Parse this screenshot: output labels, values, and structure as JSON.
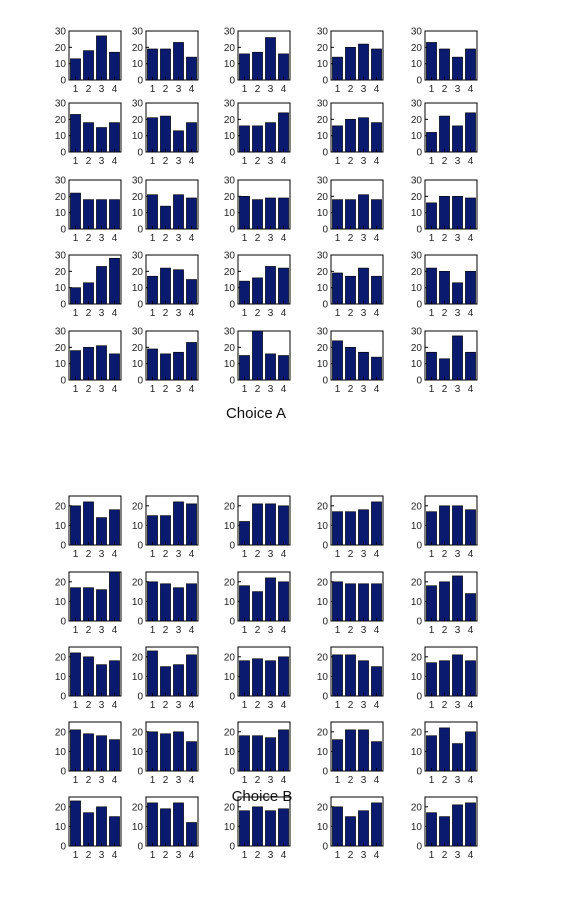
{
  "figure": {
    "bar_color": "#0a1a6e",
    "bar_edge_color": "#000000",
    "axes_color": "#000000",
    "background": "#ffffff"
  },
  "chart_data": [
    {
      "type": "bar",
      "title": "Choice A",
      "layout": "5x5 grid of small bar charts",
      "categories": [
        "1",
        "2",
        "3",
        "4"
      ],
      "ylim": [
        0,
        30
      ],
      "yticks": [
        0,
        10,
        20,
        30
      ],
      "grid": false,
      "subplots": [
        [
          13,
          18,
          27,
          17
        ],
        [
          19,
          19,
          23,
          14
        ],
        [
          16,
          17,
          26,
          16
        ],
        [
          14,
          20,
          22,
          19
        ],
        [
          23,
          19,
          14,
          19
        ],
        [
          23,
          18,
          15,
          18
        ],
        [
          21,
          22,
          13,
          18
        ],
        [
          16,
          16,
          18,
          24
        ],
        [
          16,
          20,
          21,
          18
        ],
        [
          12,
          22,
          16,
          24
        ],
        [
          22,
          18,
          18,
          18
        ],
        [
          21,
          14,
          21,
          19
        ],
        [
          20,
          18,
          19,
          19
        ],
        [
          18,
          18,
          21,
          18
        ],
        [
          16,
          20,
          20,
          19
        ],
        [
          10,
          13,
          23,
          28
        ],
        [
          17,
          22,
          21,
          15
        ],
        [
          14,
          16,
          23,
          22
        ],
        [
          19,
          17,
          22,
          17
        ],
        [
          22,
          20,
          13,
          20
        ],
        [
          18,
          20,
          21,
          16
        ],
        [
          19,
          16,
          17,
          23
        ],
        [
          15,
          30,
          16,
          15
        ],
        [
          24,
          20,
          17,
          14
        ],
        [
          17,
          13,
          27,
          17
        ]
      ]
    },
    {
      "type": "bar",
      "title": "Choice B",
      "layout": "5x5 grid of small bar charts",
      "categories": [
        "1",
        "2",
        "3",
        "4"
      ],
      "ylim": [
        0,
        25
      ],
      "yticks": [
        0,
        10,
        20
      ],
      "grid": false,
      "subplots": [
        [
          20,
          22,
          14,
          18
        ],
        [
          15,
          15,
          22,
          21
        ],
        [
          12,
          21,
          21,
          20
        ],
        [
          17,
          17,
          18,
          22
        ],
        [
          17,
          20,
          20,
          18
        ],
        [
          17,
          17,
          16,
          25
        ],
        [
          20,
          19,
          17,
          19
        ],
        [
          18,
          15,
          22,
          20
        ],
        [
          20,
          19,
          19,
          19
        ],
        [
          18,
          20,
          23,
          14
        ],
        [
          22,
          20,
          16,
          18
        ],
        [
          23,
          15,
          16,
          21
        ],
        [
          18,
          19,
          18,
          20
        ],
        [
          21,
          21,
          18,
          15
        ],
        [
          17,
          18,
          21,
          18
        ],
        [
          21,
          19,
          18,
          16
        ],
        [
          20,
          19,
          20,
          15
        ],
        [
          18,
          18,
          17,
          21
        ],
        [
          16,
          21,
          21,
          15
        ],
        [
          18,
          22,
          14,
          20
        ],
        [
          23,
          17,
          20,
          15
        ],
        [
          22,
          19,
          22,
          12
        ],
        [
          18,
          20,
          18,
          19
        ],
        [
          20,
          15,
          18,
          22
        ],
        [
          17,
          15,
          21,
          22
        ]
      ]
    }
  ]
}
